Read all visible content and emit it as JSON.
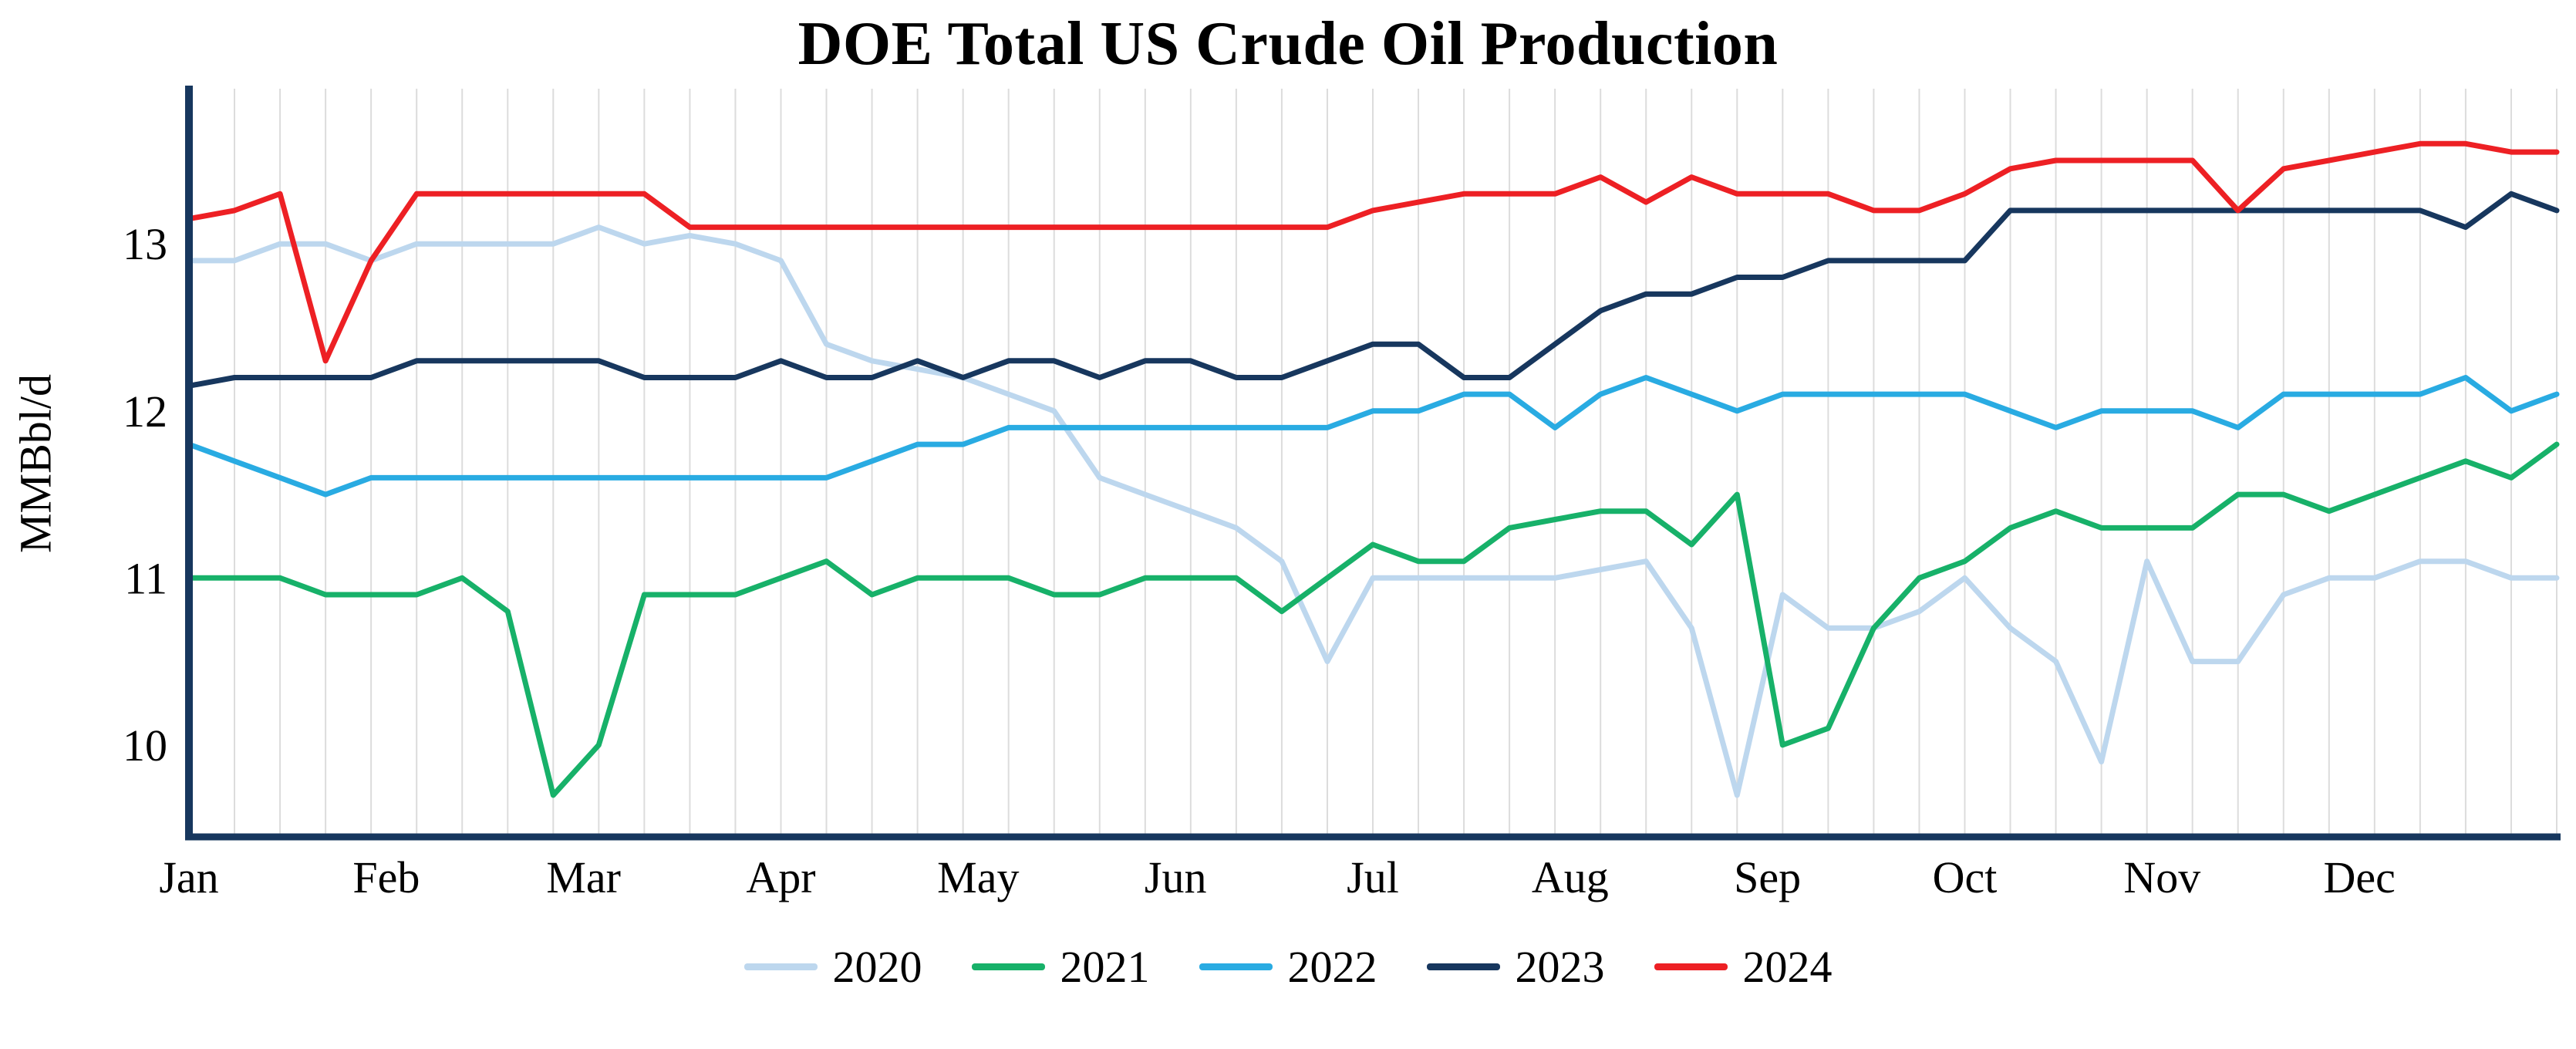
{
  "title": "DOE Total US Crude Oil Production",
  "ylabel": "MMBbl/d",
  "chart_data": {
    "type": "line",
    "title": "DOE Total US Crude Oil Production",
    "xlabel": "",
    "ylabel": "MMBbl/d",
    "x_unit": "weekly observations, Jan through Dec",
    "categories": [
      "Jan",
      "Feb",
      "Mar",
      "Apr",
      "May",
      "Jun",
      "Jul",
      "Aug",
      "Sep",
      "Oct",
      "Nov",
      "Dec"
    ],
    "yticks": [
      10,
      11,
      12,
      13
    ],
    "ylim": [
      9.45,
      13.92
    ],
    "grid": "vertical-weekly",
    "legend_position": "bottom-center",
    "axis_color": "#17375e",
    "grid_color": "#dcdcdc",
    "series": [
      {
        "name": "2020",
        "color": "#bdd7ee",
        "values": [
          12.9,
          12.9,
          13.0,
          13.0,
          12.9,
          13.0,
          13.0,
          13.0,
          13.0,
          13.1,
          13.0,
          13.05,
          13.0,
          12.9,
          12.4,
          12.3,
          12.25,
          12.2,
          12.1,
          12.0,
          11.6,
          11.5,
          11.4,
          11.3,
          11.1,
          10.5,
          11.0,
          11.0,
          11.0,
          11.0,
          11.0,
          11.05,
          11.1,
          10.7,
          9.7,
          10.9,
          10.7,
          10.7,
          10.8,
          11.0,
          10.7,
          10.5,
          9.9,
          11.1,
          10.5,
          10.5,
          10.9,
          11.0,
          11.0,
          11.1,
          11.1,
          11.0,
          11.0
        ]
      },
      {
        "name": "2021",
        "color": "#17b169",
        "values": [
          11.0,
          11.0,
          11.0,
          10.9,
          10.9,
          10.9,
          11.0,
          10.8,
          9.7,
          10.0,
          10.9,
          10.9,
          10.9,
          11.0,
          11.1,
          10.9,
          11.0,
          11.0,
          11.0,
          10.9,
          10.9,
          11.0,
          11.0,
          11.0,
          10.8,
          11.0,
          11.2,
          11.1,
          11.1,
          11.3,
          11.35,
          11.4,
          11.4,
          11.2,
          11.5,
          10.0,
          10.1,
          10.7,
          11.0,
          11.1,
          11.3,
          11.4,
          11.3,
          11.3,
          11.3,
          11.5,
          11.5,
          11.4,
          11.5,
          11.6,
          11.7,
          11.6,
          11.8
        ]
      },
      {
        "name": "2022",
        "color": "#29abe2",
        "values": [
          11.8,
          11.7,
          11.6,
          11.5,
          11.6,
          11.6,
          11.6,
          11.6,
          11.6,
          11.6,
          11.6,
          11.6,
          11.6,
          11.6,
          11.6,
          11.7,
          11.8,
          11.8,
          11.9,
          11.9,
          11.9,
          11.9,
          11.9,
          11.9,
          11.9,
          11.9,
          12.0,
          12.0,
          12.1,
          12.1,
          11.9,
          12.1,
          12.2,
          12.1,
          12.0,
          12.1,
          12.1,
          12.1,
          12.1,
          12.1,
          12.0,
          11.9,
          12.0,
          12.0,
          12.0,
          11.9,
          12.1,
          12.1,
          12.1,
          12.1,
          12.2,
          12.0,
          12.1
        ]
      },
      {
        "name": "2023",
        "color": "#17375e",
        "values": [
          12.15,
          12.2,
          12.2,
          12.2,
          12.2,
          12.3,
          12.3,
          12.3,
          12.3,
          12.3,
          12.2,
          12.2,
          12.2,
          12.3,
          12.2,
          12.2,
          12.3,
          12.2,
          12.3,
          12.3,
          12.2,
          12.3,
          12.3,
          12.2,
          12.2,
          12.3,
          12.4,
          12.4,
          12.2,
          12.2,
          12.4,
          12.6,
          12.7,
          12.7,
          12.8,
          12.8,
          12.9,
          12.9,
          12.9,
          12.9,
          13.2,
          13.2,
          13.2,
          13.2,
          13.2,
          13.2,
          13.2,
          13.2,
          13.2,
          13.2,
          13.1,
          13.3,
          13.2
        ]
      },
      {
        "name": "2024",
        "color": "#ed2024",
        "values": [
          13.15,
          13.2,
          13.3,
          12.3,
          12.9,
          13.3,
          13.3,
          13.3,
          13.3,
          13.3,
          13.3,
          13.1,
          13.1,
          13.1,
          13.1,
          13.1,
          13.1,
          13.1,
          13.1,
          13.1,
          13.1,
          13.1,
          13.1,
          13.1,
          13.1,
          13.1,
          13.2,
          13.25,
          13.3,
          13.3,
          13.3,
          13.4,
          13.25,
          13.4,
          13.3,
          13.3,
          13.3,
          13.2,
          13.2,
          13.3,
          13.45,
          13.5,
          13.5,
          13.5,
          13.5,
          13.2,
          13.45,
          13.5,
          13.55,
          13.6,
          13.6,
          13.55,
          13.55
        ]
      }
    ]
  }
}
